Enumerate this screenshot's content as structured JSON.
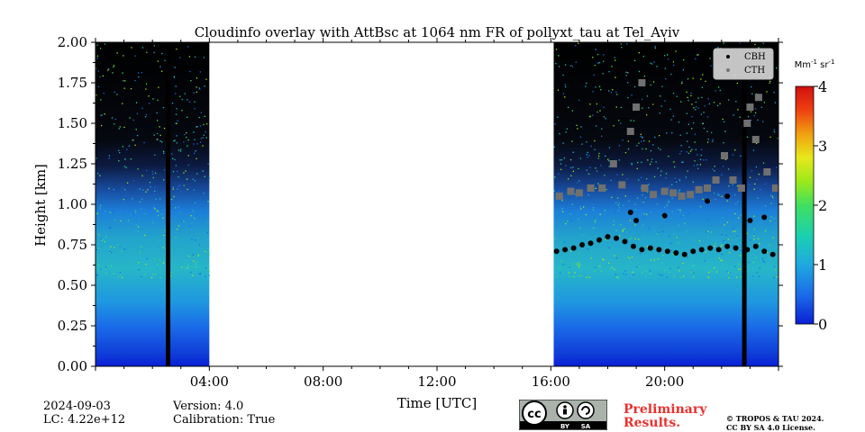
{
  "chart_data": {
    "type": "heatmap",
    "title": "Cloudinfo overlay with AttBsc at 1064 nm FR of pollyxt_tau at Tel_Aviv",
    "xlabel": "Time [UTC]",
    "ylabel": "Height [km]",
    "x_ticks": [
      "04:00",
      "08:00",
      "12:00",
      "16:00",
      "20:00"
    ],
    "x_tick_hours": [
      4,
      8,
      12,
      16,
      20
    ],
    "xlim_hours": [
      0,
      24
    ],
    "y_ticks": [
      "0.00",
      "0.25",
      "0.50",
      "0.75",
      "1.00",
      "1.25",
      "1.50",
      "1.75",
      "2.00"
    ],
    "y_tick_values": [
      0,
      0.25,
      0.5,
      0.75,
      1.0,
      1.25,
      1.5,
      1.75,
      2.0
    ],
    "ylim": [
      0,
      2.0
    ],
    "data_segments_hours": [
      [
        0,
        4.0
      ],
      [
        16.1,
        24
      ]
    ],
    "no_signal_columns_hours": [
      2.55,
      22.8
    ],
    "colorbar": {
      "label": "Mm$^{-1}$ sr$^{-1}$",
      "min": 0,
      "max": 4,
      "ticks": [
        "0",
        "1",
        "2",
        "3",
        "4"
      ]
    },
    "legend": {
      "placement": "top-right",
      "entries": [
        "CBH",
        "CTH"
      ]
    },
    "series": [
      {
        "name": "CBH",
        "color": "#000000",
        "points": [
          [
            16.2,
            0.71
          ],
          [
            16.5,
            0.72
          ],
          [
            16.8,
            0.73
          ],
          [
            17.1,
            0.75
          ],
          [
            17.4,
            0.76
          ],
          [
            17.7,
            0.78
          ],
          [
            18.0,
            0.8
          ],
          [
            18.3,
            0.79
          ],
          [
            18.6,
            0.77
          ],
          [
            18.9,
            0.74
          ],
          [
            19.2,
            0.72
          ],
          [
            19.5,
            0.73
          ],
          [
            19.8,
            0.72
          ],
          [
            20.1,
            0.71
          ],
          [
            20.4,
            0.7
          ],
          [
            20.7,
            0.69
          ],
          [
            21.0,
            0.71
          ],
          [
            21.3,
            0.72
          ],
          [
            21.6,
            0.73
          ],
          [
            21.9,
            0.72
          ],
          [
            22.2,
            0.74
          ],
          [
            22.5,
            0.73
          ],
          [
            22.9,
            0.72
          ],
          [
            23.2,
            0.74
          ],
          [
            23.5,
            0.71
          ],
          [
            23.8,
            0.69
          ],
          [
            18.8,
            0.95
          ],
          [
            19.0,
            0.9
          ],
          [
            20.0,
            0.93
          ],
          [
            21.5,
            1.02
          ],
          [
            22.2,
            1.05
          ],
          [
            23.0,
            0.9
          ],
          [
            23.5,
            0.92
          ]
        ]
      },
      {
        "name": "CTH",
        "color": "#707070",
        "points": [
          [
            16.3,
            1.05
          ],
          [
            16.7,
            1.08
          ],
          [
            17.0,
            1.07
          ],
          [
            17.4,
            1.1
          ],
          [
            17.8,
            1.1
          ],
          [
            18.2,
            1.25
          ],
          [
            18.5,
            1.12
          ],
          [
            18.8,
            1.45
          ],
          [
            19.0,
            1.6
          ],
          [
            19.3,
            1.1
          ],
          [
            19.6,
            1.06
          ],
          [
            20.0,
            1.08
          ],
          [
            20.3,
            1.07
          ],
          [
            20.6,
            1.05
          ],
          [
            20.9,
            1.06
          ],
          [
            21.2,
            1.09
          ],
          [
            21.5,
            1.1
          ],
          [
            21.8,
            1.15
          ],
          [
            22.1,
            1.3
          ],
          [
            22.4,
            1.15
          ],
          [
            22.7,
            1.1
          ],
          [
            23.0,
            1.6
          ],
          [
            23.3,
            1.66
          ],
          [
            23.6,
            1.2
          ],
          [
            23.9,
            1.1
          ],
          [
            19.2,
            1.75
          ],
          [
            22.9,
            1.5
          ],
          [
            23.2,
            1.4
          ]
        ]
      }
    ]
  },
  "info": {
    "date": "2024-09-03",
    "lc": "LC: 4.22e+12",
    "version": "Version: 4.0",
    "calibration": "Calibration: True"
  },
  "license": {
    "cc_icon": "cc-by-sa-badge",
    "cc_by_label": "BY",
    "cc_sa_label": "SA",
    "preliminary": "Preliminary Results.",
    "copyright_line1": "© TROPOS & TAU 2024.",
    "copyright_line2": "CC BY SA 4.0 License."
  },
  "colors": {
    "preliminary_text": "#e8312f",
    "colormap": [
      "#0a1fd6",
      "#1a6ae8",
      "#1fa9e0",
      "#1ad0b0",
      "#3fe060",
      "#9de81a",
      "#e8e81a",
      "#f0a010",
      "#f04010",
      "#d01010"
    ]
  }
}
